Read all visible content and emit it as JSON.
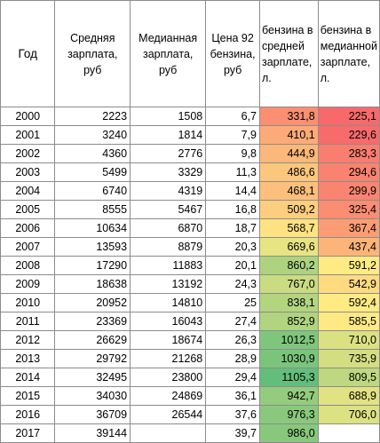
{
  "headers": {
    "year": "Год",
    "avg_salary": "Средняя зарплата, руб",
    "median_salary": "Медианная зарплата, руб",
    "price92": "Цена 92 бензина, руб",
    "fuel_avg": "бензина в средней зарплате, л.",
    "fuel_median": "бензина в медианной зарплате, л."
  },
  "rows": [
    {
      "year": "2000",
      "avg": "2223",
      "median": "1508",
      "price": "6,7",
      "fuel_avg": "331,8",
      "fuel_median": "225,1"
    },
    {
      "year": "2001",
      "avg": "3240",
      "median": "1814",
      "price": "7,9",
      "fuel_avg": "410,1",
      "fuel_median": "229,6"
    },
    {
      "year": "2002",
      "avg": "4360",
      "median": "2776",
      "price": "9,8",
      "fuel_avg": "444,9",
      "fuel_median": "283,3"
    },
    {
      "year": "2003",
      "avg": "5499",
      "median": "3329",
      "price": "11,3",
      "fuel_avg": "486,6",
      "fuel_median": "294,6"
    },
    {
      "year": "2004",
      "avg": "6740",
      "median": "4319",
      "price": "14,4",
      "fuel_avg": "468,1",
      "fuel_median": "299,9"
    },
    {
      "year": "2005",
      "avg": "8555",
      "median": "5467",
      "price": "16,8",
      "fuel_avg": "509,2",
      "fuel_median": "325,4"
    },
    {
      "year": "2006",
      "avg": "10634",
      "median": "6870",
      "price": "18,7",
      "fuel_avg": "568,7",
      "fuel_median": "367,4"
    },
    {
      "year": "2007",
      "avg": "13593",
      "median": "8879",
      "price": "20,3",
      "fuel_avg": "669,6",
      "fuel_median": "437,4"
    },
    {
      "year": "2008",
      "avg": "17290",
      "median": "11883",
      "price": "20,1",
      "fuel_avg": "860,2",
      "fuel_median": "591,2"
    },
    {
      "year": "2009",
      "avg": "18638",
      "median": "13192",
      "price": "24,3",
      "fuel_avg": "767,0",
      "fuel_median": "542,9"
    },
    {
      "year": "2010",
      "avg": "20952",
      "median": "14810",
      "price": "25",
      "fuel_avg": "838,1",
      "fuel_median": "592,4"
    },
    {
      "year": "2011",
      "avg": "23369",
      "median": "16043",
      "price": "27,4",
      "fuel_avg": "852,9",
      "fuel_median": "585,5"
    },
    {
      "year": "2012",
      "avg": "26629",
      "median": "18674",
      "price": "26,3",
      "fuel_avg": "1012,5",
      "fuel_median": "710,0"
    },
    {
      "year": "2013",
      "avg": "29792",
      "median": "21268",
      "price": "28,9",
      "fuel_avg": "1030,9",
      "fuel_median": "735,9"
    },
    {
      "year": "2014",
      "avg": "32495",
      "median": "23800",
      "price": "29,4",
      "fuel_avg": "1105,3",
      "fuel_median": "809,5"
    },
    {
      "year": "2015",
      "avg": "34030",
      "median": "24869",
      "price": "36,1",
      "fuel_avg": "942,7",
      "fuel_median": "688,9"
    },
    {
      "year": "2016",
      "avg": "36709",
      "median": "26544",
      "price": "37,6",
      "fuel_avg": "976,3",
      "fuel_median": "706,0"
    },
    {
      "year": "2017",
      "avg": "39144",
      "median": "",
      "price": "39,7",
      "fuel_avg": "986,0",
      "fuel_median": ""
    }
  ],
  "heatmap_colors": {
    "low": "#f8696b",
    "mid": "#ffeb84",
    "high": "#63be7b"
  }
}
